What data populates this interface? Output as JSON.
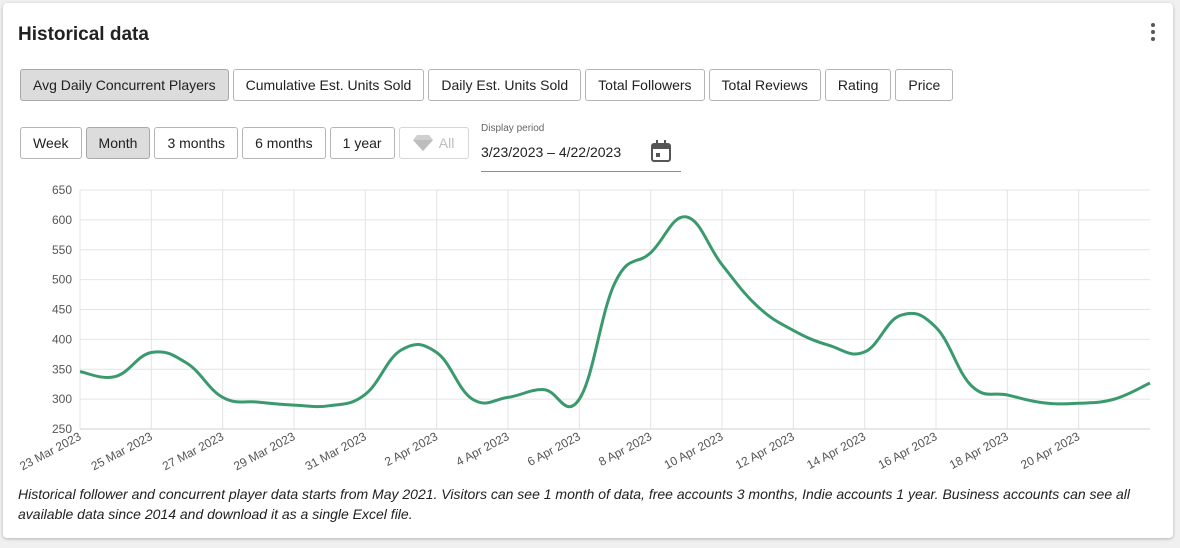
{
  "header": {
    "title": "Historical data"
  },
  "metric_tabs": [
    {
      "label": "Avg Daily Concurrent Players",
      "active": true
    },
    {
      "label": "Cumulative Est. Units Sold",
      "active": false
    },
    {
      "label": "Daily Est. Units Sold",
      "active": false
    },
    {
      "label": "Total Followers",
      "active": false
    },
    {
      "label": "Total Reviews",
      "active": false
    },
    {
      "label": "Rating",
      "active": false
    },
    {
      "label": "Price",
      "active": false
    }
  ],
  "period_buttons": [
    {
      "label": "Week",
      "active": false,
      "disabled": false
    },
    {
      "label": "Month",
      "active": true,
      "disabled": false
    },
    {
      "label": "3 months",
      "active": false,
      "disabled": false
    },
    {
      "label": "6 months",
      "active": false,
      "disabled": false
    },
    {
      "label": "1 year",
      "active": false,
      "disabled": false
    },
    {
      "label": "All",
      "active": false,
      "disabled": true,
      "icon": "gem-icon"
    }
  ],
  "display_period": {
    "label": "Display period",
    "value": "3/23/2023 – 4/22/2023",
    "icon": "calendar-icon"
  },
  "chart_data": {
    "type": "line",
    "title": "",
    "xlabel": "",
    "ylabel": "",
    "x": [
      "23 Mar 2023",
      "24 Mar 2023",
      "25 Mar 2023",
      "26 Mar 2023",
      "27 Mar 2023",
      "28 Mar 2023",
      "29 Mar 2023",
      "30 Mar 2023",
      "31 Mar 2023",
      "1 Apr 2023",
      "2 Apr 2023",
      "3 Apr 2023",
      "4 Apr 2023",
      "5 Apr 2023",
      "6 Apr 2023",
      "7 Apr 2023",
      "8 Apr 2023",
      "9 Apr 2023",
      "10 Apr 2023",
      "11 Apr 2023",
      "12 Apr 2023",
      "13 Apr 2023",
      "14 Apr 2023",
      "15 Apr 2023",
      "16 Apr 2023",
      "17 Apr 2023",
      "18 Apr 2023",
      "19 Apr 2023",
      "20 Apr 2023",
      "21 Apr 2023",
      "22 Apr 2023"
    ],
    "series": [
      {
        "values": [
          346,
          338,
          378,
          360,
          303,
          295,
          290,
          289,
          308,
          382,
          378,
          300,
          303,
          316,
          300,
          495,
          545,
          605,
          525,
          455,
          415,
          390,
          379,
          440,
          420,
          322,
          307,
          294,
          293,
          300,
          327
        ]
      }
    ],
    "tick_labels": [
      "23 Mar 2023",
      "25 Mar 2023",
      "27 Mar 2023",
      "29 Mar 2023",
      "31 Mar 2023",
      "2 Apr 2023",
      "4 Apr 2023",
      "6 Apr 2023",
      "8 Apr 2023",
      "10 Apr 2023",
      "12 Apr 2023",
      "14 Apr 2023",
      "16 Apr 2023",
      "18 Apr 2023",
      "20 Apr 2023"
    ],
    "yticks": [
      250,
      300,
      350,
      400,
      450,
      500,
      550,
      600,
      650
    ],
    "ylim": [
      250,
      650
    ],
    "grid": true,
    "legend": "none",
    "line_color": "#3a9a6e"
  },
  "footnote": "Historical follower and concurrent player data starts from May 2021. Visitors can see 1 month of data, free accounts 3 months, Indie accounts 1 year. Business accounts can see all available data since 2014 and download it as a single Excel file."
}
